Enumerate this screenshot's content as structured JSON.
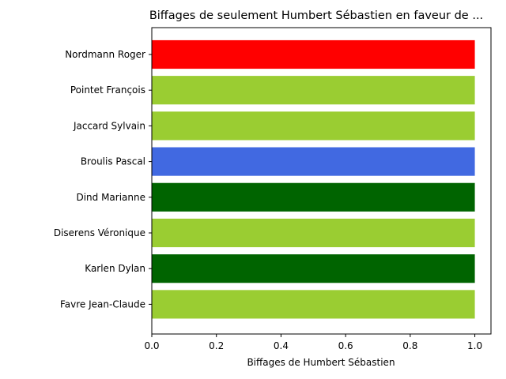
{
  "chart_data": {
    "type": "bar",
    "orientation": "horizontal",
    "title": "Biffages de seulement Humbert Sébastien en faveur de ...",
    "xlabel": "Biffages de Humbert Sébastien",
    "ylabel": "",
    "xlim": [
      0,
      1.05
    ],
    "xticks": [
      "0.0",
      "0.2",
      "0.4",
      "0.6",
      "0.8",
      "1.0"
    ],
    "grid": false,
    "categories": [
      "Nordmann Roger",
      "Pointet François",
      "Jaccard Sylvain",
      "Broulis Pascal",
      "Dind Marianne",
      "Diserens Véronique",
      "Karlen Dylan",
      "Favre Jean-Claude"
    ],
    "values": [
      1,
      1,
      1,
      1,
      1,
      1,
      1,
      1
    ],
    "colors": [
      "#ff0000",
      "#9acd32",
      "#9acd32",
      "#4169e1",
      "#006400",
      "#9acd32",
      "#006400",
      "#9acd32"
    ]
  }
}
